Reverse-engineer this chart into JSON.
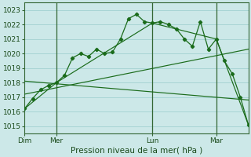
{
  "xlabel": "Pression niveau de la mer( hPa )",
  "bg_color": "#cce8e8",
  "grid_color": "#99cccc",
  "line_color": "#1a6b1a",
  "ylim": [
    1014.5,
    1023.5
  ],
  "yticks": [
    1015,
    1016,
    1017,
    1018,
    1019,
    1020,
    1021,
    1022,
    1023
  ],
  "vline_positions": [
    2,
    8,
    12
  ],
  "curve1_x": [
    0,
    0.5,
    1,
    1.5,
    2,
    2.5,
    3,
    3.5,
    4,
    4.5,
    5,
    5.5,
    6,
    6.5,
    7,
    7.5,
    8,
    8.5,
    9,
    9.5,
    10,
    10.5,
    11,
    11.5,
    12,
    12.5,
    13,
    13.5,
    14
  ],
  "curve1_y": [
    1016.2,
    1016.9,
    1017.5,
    1017.8,
    1018.0,
    1018.5,
    1019.7,
    1020.0,
    1019.8,
    1020.3,
    1020.0,
    1020.1,
    1021.0,
    1022.4,
    1022.7,
    1022.2,
    1022.1,
    1022.2,
    1022.0,
    1021.7,
    1021.0,
    1020.5,
    1022.2,
    1020.3,
    1021.0,
    1019.5,
    1018.6,
    1017.0,
    1015.1
  ],
  "curve2_x": [
    0,
    2,
    8,
    12,
    14
  ],
  "curve2_y": [
    1016.2,
    1018.0,
    1022.1,
    1021.0,
    1015.1
  ],
  "curve3_x": [
    0,
    14
  ],
  "curve3_y": [
    1018.1,
    1016.8
  ],
  "curve4_x": [
    0,
    14
  ],
  "curve4_y": [
    1017.2,
    1020.3
  ],
  "xlim": [
    0,
    14
  ],
  "xtick_positions": [
    0,
    2,
    8,
    12
  ],
  "xtick_labels": [
    "Dim",
    "Mer",
    "Lun",
    "Mar"
  ]
}
